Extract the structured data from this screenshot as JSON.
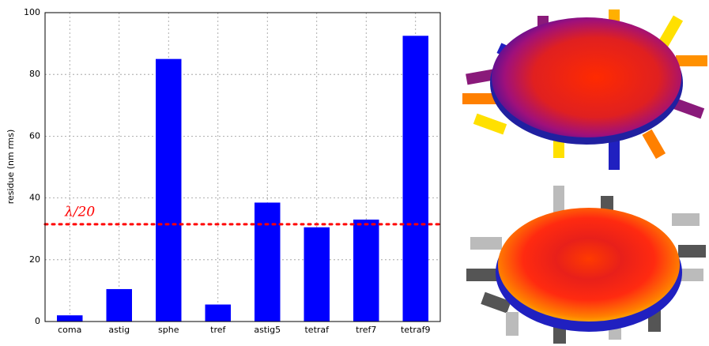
{
  "chart_data": {
    "type": "bar",
    "y_label": "residue (nm rms)",
    "categories": [
      "coma",
      "astig",
      "sphe",
      "tref",
      "astig5",
      "tetraf",
      "tref7",
      "tetraf9"
    ],
    "values": [
      2,
      10.5,
      85,
      5.5,
      38.5,
      30.5,
      33,
      92.5
    ],
    "color": "#0000ff",
    "ylim": [
      0,
      100
    ],
    "yticks": [
      0,
      20,
      40,
      60,
      80,
      100
    ],
    "grid": true,
    "reference_line": {
      "value": 31.5,
      "label": "λ/20",
      "color": "#ff0000"
    }
  }
}
